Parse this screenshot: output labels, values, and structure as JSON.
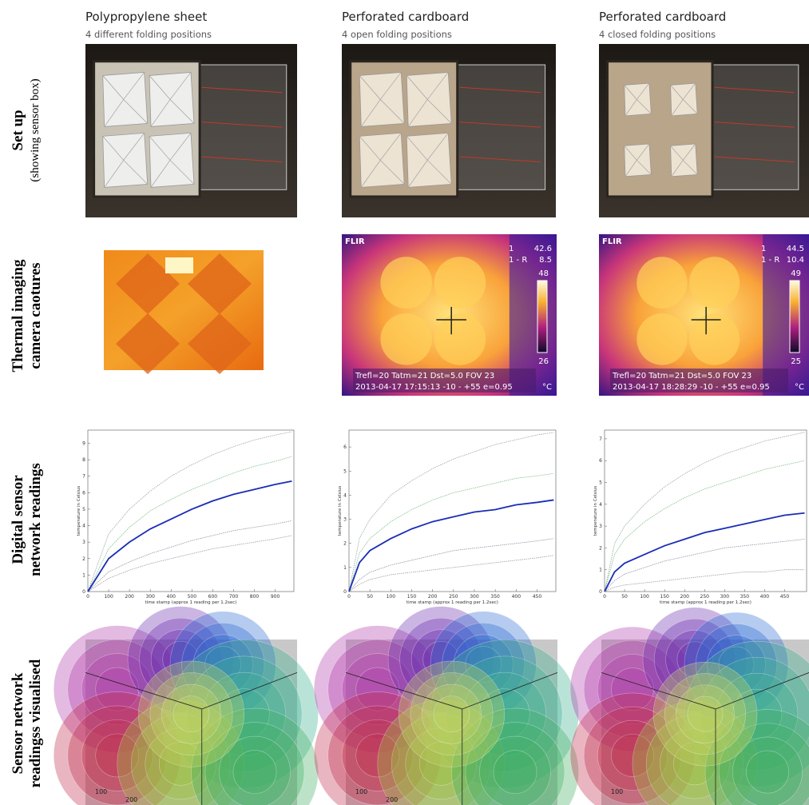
{
  "columns": [
    {
      "title": "Polypropylene sheet",
      "subtitle": "4 different folding positions"
    },
    {
      "title": "Perforated cardboard",
      "subtitle": "4 open folding positions"
    },
    {
      "title": "Perforated cardboard",
      "subtitle": "4 closed folding positions"
    }
  ],
  "rows": [
    {
      "label": "Set up",
      "sublabel": "(showing sensor box)"
    },
    {
      "label": "Thermal imaging",
      "sublabel": "camera caotures"
    },
    {
      "label": "Digital sensor",
      "sublabel": "network readings"
    },
    {
      "label": "Sensor network",
      "sublabel": "readingss visualised"
    }
  ],
  "thermal_overlays": [
    {
      "brand": "FLIR",
      "marker": "1",
      "max": "42.6",
      "marker_r": "1 - R",
      "delta": "8.5",
      "scale_top": "48",
      "scale_bottom": "26",
      "params": "Trefl=20 Tatm=21 Dst=5.0 FOV 23",
      "stamp": "2013-04-17 17:15:13  -10 - +55 e=0.95",
      "unit": "°C"
    },
    {
      "brand": "FLIR",
      "marker": "1",
      "max": "44.5",
      "marker_r": "1 - R",
      "delta": "10.4",
      "scale_top": "49",
      "scale_bottom": "25",
      "params": "Trefl=20 Tatm=21 Dst=5.0 FOV 23",
      "stamp": "2013-04-17 18:28:29  -10 - +55 e=0.95",
      "unit": "°C"
    }
  ],
  "chart_data": [
    {
      "type": "line",
      "x_label": "time stamp (approx 1 reading per 1.2sec)",
      "y_label": "temperature in Celsius",
      "xlim": [
        0,
        990
      ],
      "ylim": [
        0,
        9.8
      ],
      "xticks": [
        0,
        100,
        200,
        300,
        400,
        500,
        600,
        700,
        800,
        900
      ],
      "yticks": [
        0,
        1,
        2,
        3,
        4,
        5,
        6,
        7,
        8,
        9
      ],
      "x": [
        0,
        100,
        200,
        300,
        400,
        500,
        600,
        700,
        800,
        900,
        980
      ],
      "series": [
        {
          "color": "#9aa9a0",
          "values": [
            0,
            3.5,
            5.0,
            6.1,
            7.0,
            7.7,
            8.3,
            8.8,
            9.2,
            9.5,
            9.7
          ]
        },
        {
          "color": "#7fbf8c",
          "values": [
            0,
            2.6,
            3.9,
            4.9,
            5.6,
            6.2,
            6.7,
            7.2,
            7.6,
            7.9,
            8.2
          ]
        },
        {
          "color": "#9a8fa8",
          "values": [
            0,
            1.2,
            1.8,
            2.3,
            2.7,
            3.1,
            3.4,
            3.7,
            3.9,
            4.1,
            4.3
          ]
        },
        {
          "color": "#a59aa0",
          "values": [
            0,
            0.8,
            1.3,
            1.7,
            2.0,
            2.3,
            2.6,
            2.8,
            3.0,
            3.2,
            3.4
          ]
        },
        {
          "color": "#1a2db5",
          "values": [
            0,
            2.0,
            3.0,
            3.8,
            4.4,
            5.0,
            5.5,
            5.9,
            6.2,
            6.5,
            6.7
          ]
        }
      ]
    },
    {
      "type": "line",
      "x_label": "time stamp (approx 1 reading per 1.2sec)",
      "y_label": "temperature in Celsius",
      "xlim": [
        0,
        495
      ],
      "ylim": [
        0,
        6.7
      ],
      "xticks": [
        0,
        50,
        100,
        150,
        200,
        250,
        300,
        350,
        400,
        450
      ],
      "yticks": [
        0,
        1,
        2,
        3,
        4,
        5,
        6
      ],
      "x": [
        0,
        25,
        50,
        100,
        150,
        200,
        250,
        300,
        350,
        400,
        450,
        490
      ],
      "series": [
        {
          "color": "#9aa9a0",
          "values": [
            0,
            2.2,
            3.0,
            4.0,
            4.6,
            5.1,
            5.5,
            5.8,
            6.1,
            6.3,
            6.5,
            6.6
          ]
        },
        {
          "color": "#7fbf8c",
          "values": [
            0,
            1.6,
            2.2,
            2.9,
            3.4,
            3.8,
            4.1,
            4.3,
            4.5,
            4.7,
            4.8,
            4.9
          ]
        },
        {
          "color": "#9a8fa8",
          "values": [
            0,
            0.5,
            0.8,
            1.1,
            1.3,
            1.5,
            1.7,
            1.8,
            1.9,
            2.0,
            2.1,
            2.2
          ]
        },
        {
          "color": "#a59aa0",
          "values": [
            0,
            0.3,
            0.5,
            0.7,
            0.8,
            0.9,
            1.0,
            1.1,
            1.2,
            1.3,
            1.4,
            1.5
          ]
        },
        {
          "color": "#1a2db5",
          "values": [
            0,
            1.2,
            1.7,
            2.2,
            2.6,
            2.9,
            3.1,
            3.3,
            3.4,
            3.6,
            3.7,
            3.8
          ]
        }
      ]
    },
    {
      "type": "line",
      "x_label": "time stamp (approx 1 reading per 1.2sec)",
      "y_label": "temperature in Celsius",
      "xlim": [
        0,
        505
      ],
      "ylim": [
        0,
        7.4
      ],
      "xticks": [
        0,
        50,
        100,
        150,
        200,
        250,
        300,
        350,
        400,
        450
      ],
      "yticks": [
        0,
        1,
        2,
        3,
        4,
        5,
        6,
        7
      ],
      "x": [
        0,
        25,
        50,
        100,
        150,
        200,
        250,
        300,
        350,
        400,
        450,
        500
      ],
      "series": [
        {
          "color": "#9aa9a0",
          "values": [
            0,
            2.2,
            3.0,
            4.0,
            4.8,
            5.4,
            5.9,
            6.3,
            6.6,
            6.9,
            7.1,
            7.3
          ]
        },
        {
          "color": "#7fbf8c",
          "values": [
            0,
            1.7,
            2.4,
            3.2,
            3.8,
            4.3,
            4.7,
            5.0,
            5.3,
            5.6,
            5.8,
            6.0
          ]
        },
        {
          "color": "#9a8fa8",
          "values": [
            0,
            0.5,
            0.8,
            1.1,
            1.4,
            1.6,
            1.8,
            2.0,
            2.1,
            2.2,
            2.3,
            2.4
          ]
        },
        {
          "color": "#a59aa0",
          "values": [
            0,
            0.2,
            0.3,
            0.4,
            0.5,
            0.6,
            0.7,
            0.8,
            0.9,
            0.9,
            1.0,
            1.0
          ]
        },
        {
          "color": "#1a2db5",
          "values": [
            0,
            0.9,
            1.3,
            1.7,
            2.1,
            2.4,
            2.7,
            2.9,
            3.1,
            3.3,
            3.5,
            3.6
          ]
        }
      ]
    }
  ],
  "visualisation_labels": [
    [
      "100",
      "200"
    ],
    [
      "100",
      "200"
    ],
    [
      "100"
    ]
  ]
}
